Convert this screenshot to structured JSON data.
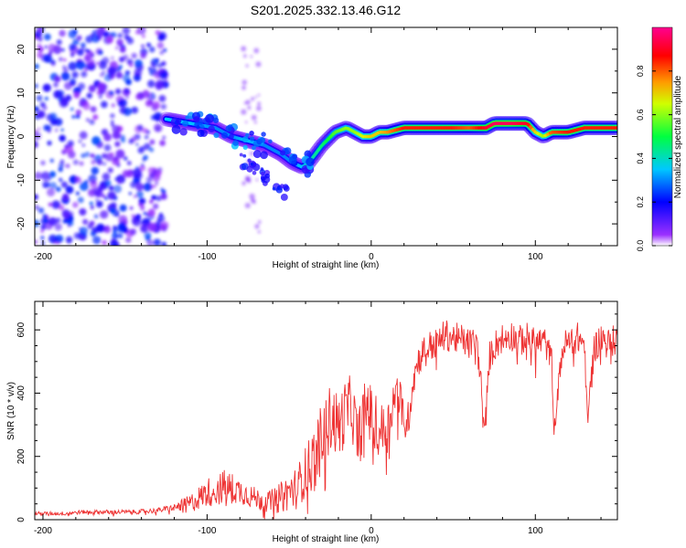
{
  "title": "S201.2025.332.13.46.G12",
  "chart_data": [
    {
      "type": "heatmap",
      "title": "S201.2025.332.13.46.G12",
      "xlabel": "Height of straight line (km)",
      "ylabel": "Frequency (Hz)",
      "xlim": [
        -205,
        150
      ],
      "ylim": [
        -25,
        25
      ],
      "xticks": [
        -200,
        -100,
        0,
        100
      ],
      "xtick_labels": [
        "-200",
        "-100",
        "0",
        "100"
      ],
      "yticks": [
        -20,
        -10,
        0,
        10,
        20
      ],
      "ytick_labels": [
        "-20",
        "-10",
        "0",
        "10",
        "20"
      ],
      "colorbar": {
        "label": "Normalized spectral amplitude",
        "range": [
          0,
          1
        ],
        "ticks": [
          0.0,
          0.2,
          0.4,
          0.6,
          0.8
        ],
        "tick_labels": [
          "0.0",
          "0.2",
          "0.4",
          "0.6",
          "0.8"
        ],
        "colormap": [
          "#ffffff",
          "#7f00ff",
          "#0000ff",
          "#00ffff",
          "#00ff00",
          "#ffff00",
          "#ff7f00",
          "#ff0000",
          "#ff00ff"
        ]
      },
      "ridge": {
        "x": [
          -125,
          -110,
          -95,
          -85,
          -75,
          -65,
          -55,
          -48,
          -42,
          -38,
          -30,
          -22,
          -15,
          -10,
          -5,
          0,
          5,
          10,
          20,
          30,
          40,
          50,
          60,
          70,
          75,
          85,
          95,
          100,
          105,
          110,
          120,
          130,
          140,
          150
        ],
        "freq": [
          4,
          3,
          2,
          0,
          -1,
          -2,
          -4,
          -6,
          -7,
          -6,
          -2,
          1,
          2,
          1,
          0,
          0,
          1,
          1,
          2,
          2,
          2,
          2,
          2,
          2,
          3,
          3,
          3,
          1,
          0,
          1,
          1,
          2,
          2,
          2
        ],
        "amplitude": [
          0.35,
          0.35,
          0.3,
          0.3,
          0.35,
          0.3,
          0.3,
          0.3,
          0.35,
          0.4,
          0.45,
          0.55,
          0.6,
          0.6,
          0.65,
          0.7,
          0.7,
          0.75,
          0.85,
          0.85,
          0.85,
          0.85,
          0.8,
          0.9,
          0.95,
          0.95,
          0.9,
          0.7,
          0.6,
          0.8,
          0.85,
          0.85,
          0.85,
          0.85
        ]
      },
      "noise_region": {
        "x_from": -205,
        "x_to": -125,
        "freq_from": -25,
        "freq_to": 25,
        "amplitude": 0.15
      }
    },
    {
      "type": "line",
      "xlabel": "Height of straight line (km)",
      "ylabel": "SNR (10 * v/v)",
      "xlim": [
        -205,
        150
      ],
      "ylim": [
        0,
        690
      ],
      "xticks": [
        -200,
        -100,
        0,
        100
      ],
      "xtick_labels": [
        "-200",
        "-100",
        "0",
        "100"
      ],
      "yticks": [
        0,
        200,
        400,
        600
      ],
      "ytick_labels": [
        "0",
        "200",
        "400",
        "600"
      ],
      "series": [
        {
          "name": "SNR",
          "color": "#ee3333",
          "x": [
            -205,
            -190,
            -175,
            -160,
            -145,
            -130,
            -120,
            -110,
            -100,
            -92,
            -85,
            -78,
            -70,
            -62,
            -55,
            -50,
            -45,
            -40,
            -35,
            -30,
            -27,
            -24,
            -20,
            -15,
            -12,
            -8,
            -5,
            -2,
            0,
            3,
            6,
            10,
            13,
            16,
            19,
            22,
            25,
            28,
            32,
            36,
            40,
            45,
            50,
            55,
            60,
            64,
            67,
            68,
            69,
            72,
            76,
            80,
            85,
            90,
            95,
            100,
            105,
            110,
            111,
            112,
            116,
            120,
            126,
            130,
            131,
            132,
            135,
            140,
            145,
            150
          ],
          "y": [
            20,
            20,
            25,
            25,
            25,
            30,
            40,
            55,
            90,
            110,
            105,
            90,
            70,
            60,
            75,
            95,
            110,
            160,
            200,
            270,
            310,
            340,
            300,
            360,
            370,
            260,
            330,
            380,
            330,
            310,
            290,
            300,
            380,
            410,
            360,
            300,
            430,
            500,
            540,
            555,
            560,
            590,
            580,
            575,
            560,
            570,
            440,
            330,
            280,
            520,
            560,
            580,
            590,
            570,
            580,
            560,
            575,
            510,
            320,
            300,
            540,
            570,
            580,
            560,
            400,
            310,
            540,
            580,
            560,
            580
          ],
          "jitter": [
            6,
            6,
            6,
            7,
            7,
            8,
            10,
            30,
            45,
            60,
            50,
            40,
            35,
            35,
            50,
            60,
            70,
            80,
            110,
            110,
            110,
            110,
            110,
            100,
            100,
            100,
            100,
            100,
            100,
            90,
            90,
            80,
            80,
            70,
            60,
            60,
            60,
            50,
            50,
            50,
            50,
            50,
            50,
            50,
            50,
            50,
            30,
            20,
            20,
            50,
            50,
            50,
            50,
            50,
            50,
            50,
            50,
            40,
            20,
            20,
            50,
            50,
            50,
            50,
            30,
            20,
            50,
            50,
            50,
            50
          ]
        }
      ]
    }
  ]
}
